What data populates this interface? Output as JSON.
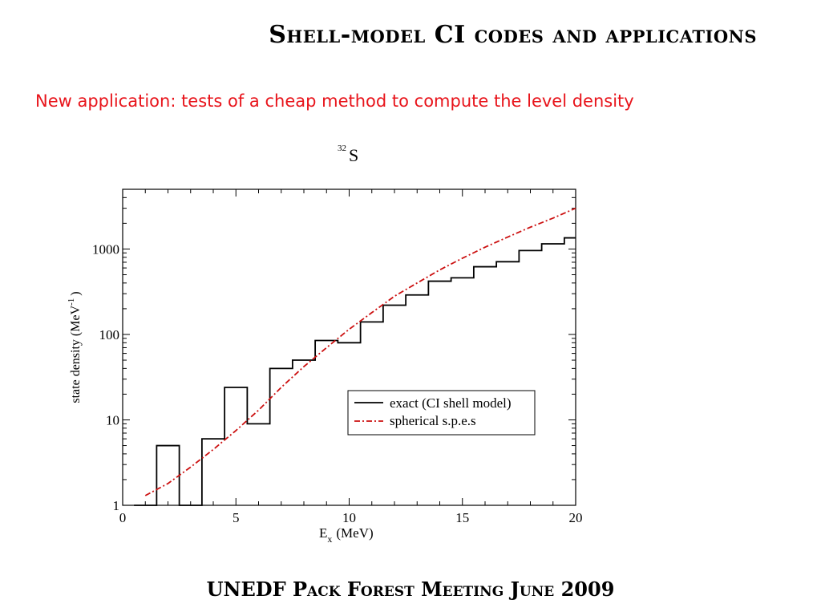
{
  "slide": {
    "title": "Shell-model CI codes and applications",
    "subtitle": "New application: tests of a cheap method to compute the level density",
    "footer": "UNEDF Pack Forest Meeting June 2009"
  },
  "chart_data": {
    "type": "line",
    "title_mass": "32",
    "title_symbol": "S",
    "xlabel_main": "E",
    "xlabel_sub": "x",
    "xlabel_unit": "(MeV)",
    "ylabel_main": "state density (MeV",
    "ylabel_sup": "-1",
    "ylabel_close": ")",
    "xlim": [
      0,
      20
    ],
    "ylim": [
      1,
      5000
    ],
    "yscale": "log",
    "xticks": [
      0,
      5,
      10,
      15,
      20
    ],
    "yticks": [
      1,
      10,
      100,
      1000
    ],
    "series": [
      {
        "name": "exact (CI shell model)",
        "style": "step",
        "color": "#000000",
        "x": [
          0.5,
          1.5,
          2.5,
          3.5,
          4.5,
          5.5,
          6.5,
          7.5,
          8.5,
          9.5,
          10.5,
          11.5,
          12.5,
          13.5,
          14.5,
          15.5,
          16.5,
          17.5,
          18.5,
          19.5,
          20
        ],
        "y": [
          1,
          5,
          0.01,
          6,
          24,
          9,
          40,
          50,
          85,
          80,
          140,
          220,
          290,
          420,
          460,
          620,
          710,
          960,
          1150,
          1350,
          1350
        ]
      },
      {
        "name": "spherical s.p.e.s",
        "style": "dash-dot",
        "color": "#cc1111",
        "x": [
          1,
          2,
          3,
          4,
          5,
          6,
          7,
          8,
          9,
          10,
          11,
          12,
          13,
          14,
          15,
          16,
          17,
          18,
          19,
          20
        ],
        "y": [
          1.3,
          1.8,
          2.8,
          4.5,
          7.5,
          13,
          24,
          42,
          70,
          115,
          180,
          280,
          400,
          570,
          780,
          1050,
          1380,
          1800,
          2300,
          3000
        ]
      }
    ],
    "legend_position": "lower-right"
  }
}
